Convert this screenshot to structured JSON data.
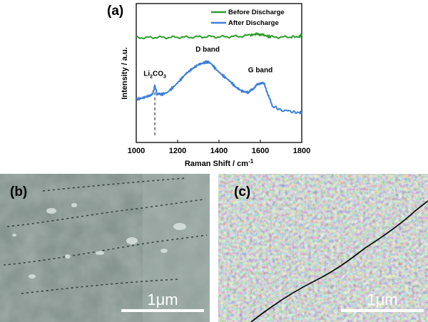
{
  "panels": {
    "a": "(a)",
    "b": "(b)",
    "c": "(c)"
  },
  "chart_data": {
    "type": "line",
    "xlabel": "Raman Shift / cm⁻¹",
    "ylabel": "Intensity / a.u.",
    "xlim": [
      1000,
      1800
    ],
    "ylim": [
      0,
      10
    ],
    "xticks": [
      "1000",
      "1200",
      "1400",
      "1600",
      "1800"
    ],
    "legend_position": "top-right",
    "series": [
      {
        "name": "Before Discharge",
        "color": "#2ca02c",
        "x": [
          1000,
          1050,
          1100,
          1150,
          1200,
          1250,
          1300,
          1350,
          1400,
          1450,
          1500,
          1550,
          1580,
          1600,
          1620,
          1650,
          1700,
          1750,
          1790,
          1800
        ],
        "y": [
          7.55,
          7.55,
          7.57,
          7.56,
          7.58,
          7.58,
          7.6,
          7.62,
          7.6,
          7.62,
          7.64,
          7.72,
          7.8,
          7.78,
          7.7,
          7.6,
          7.58,
          7.6,
          7.62,
          7.8
        ]
      },
      {
        "name": "After Discharge",
        "color": "#3c7fd9",
        "x": [
          1000,
          1030,
          1060,
          1080,
          1090,
          1100,
          1120,
          1150,
          1180,
          1210,
          1240,
          1270,
          1300,
          1330,
          1345,
          1360,
          1390,
          1420,
          1450,
          1480,
          1510,
          1540,
          1560,
          1580,
          1600,
          1620,
          1640,
          1660,
          1700,
          1750,
          1790,
          1800
        ],
        "y": [
          3.1,
          3.2,
          3.35,
          3.5,
          4.1,
          3.5,
          3.45,
          3.6,
          4.0,
          4.45,
          4.95,
          5.3,
          5.6,
          5.75,
          5.8,
          5.7,
          5.2,
          4.8,
          4.45,
          4.0,
          3.7,
          3.6,
          3.8,
          4.1,
          4.3,
          4.2,
          3.3,
          2.6,
          2.35,
          2.2,
          2.15,
          2.2
        ]
      }
    ],
    "annotations": [
      {
        "text": "Li",
        "sub": "2",
        "text2": "CO",
        "sub2": "3",
        "x": 1090
      },
      {
        "text": "D band",
        "x": 1345
      },
      {
        "text": "G band",
        "x": 1600
      }
    ]
  },
  "micrographs": {
    "b_scale_label": "1μm",
    "c_scale_label": "1μm"
  }
}
